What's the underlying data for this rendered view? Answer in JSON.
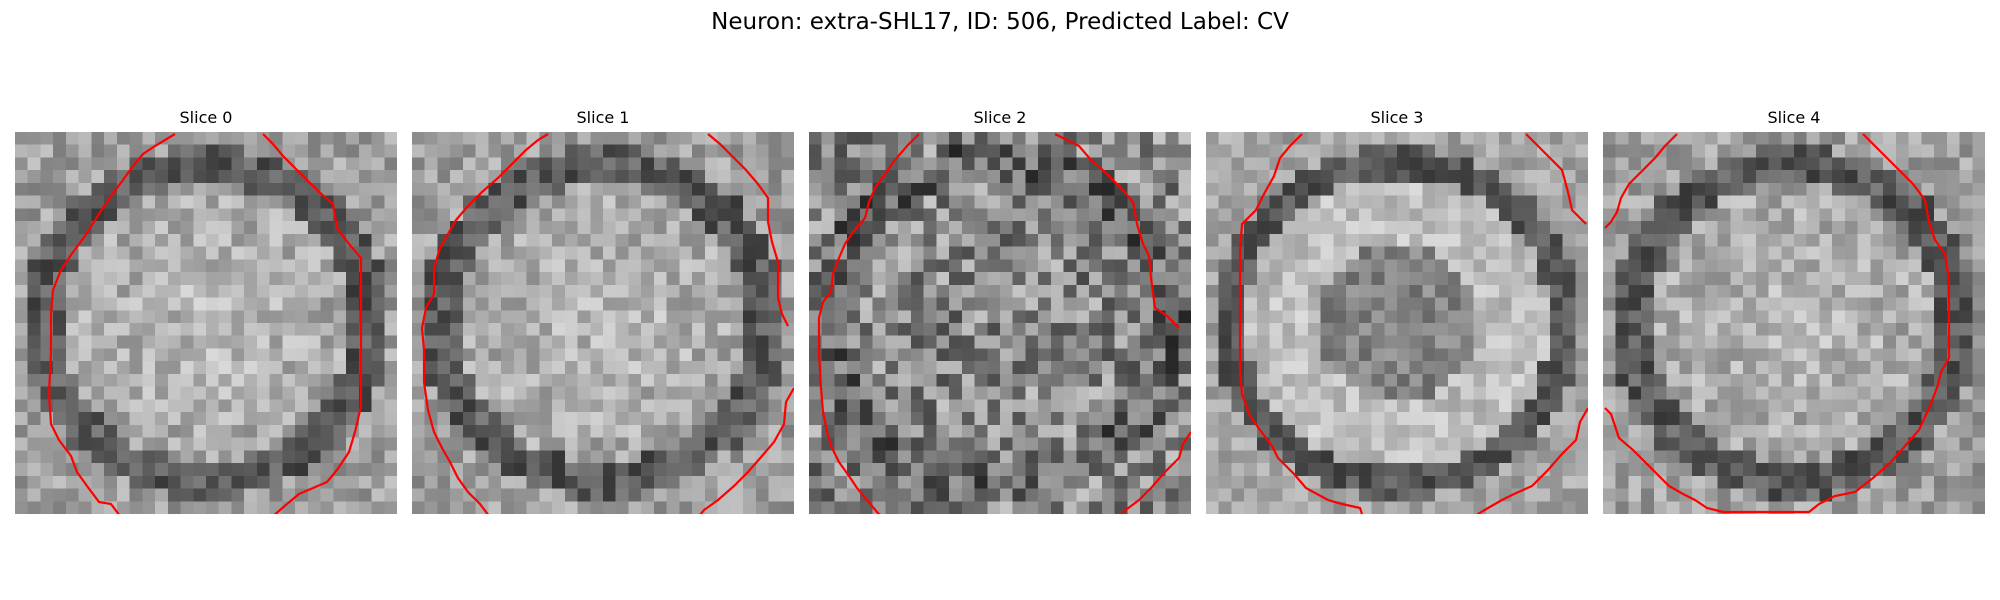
{
  "figure": {
    "title": "Neuron: extra-SHL17, ID: 506, Predicted Label: CV"
  },
  "style": {
    "contour_color": "#ff0000"
  },
  "panels": [
    {
      "title": "Slice 0",
      "seed": 11,
      "variant": "bright-ring"
    },
    {
      "title": "Slice 1",
      "seed": 23,
      "variant": "bright-ring"
    },
    {
      "title": "Slice 2",
      "seed": 37,
      "variant": "noisy"
    },
    {
      "title": "Slice 3",
      "seed": 41,
      "variant": "ring-dark-center"
    },
    {
      "title": "Slice 4",
      "seed": 59,
      "variant": "bright-ring"
    }
  ]
}
